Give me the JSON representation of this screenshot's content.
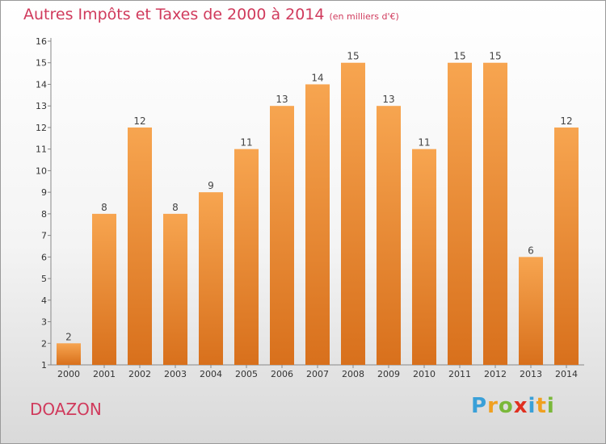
{
  "chart_data": {
    "type": "bar",
    "title": "Autres Impôts et Taxes de 2000 à 2014",
    "subtitle": "(en milliers d'€)",
    "xlabel": "",
    "ylabel": "",
    "categories": [
      "2000",
      "2001",
      "2002",
      "2003",
      "2004",
      "2005",
      "2006",
      "2007",
      "2008",
      "2009",
      "2010",
      "2011",
      "2012",
      "2013",
      "2014"
    ],
    "values": [
      2,
      8,
      12,
      8,
      9,
      11,
      13,
      14,
      15,
      13,
      11,
      15,
      15,
      6,
      12
    ],
    "ylim": [
      1,
      16
    ],
    "yticks": [
      1,
      2,
      3,
      4,
      5,
      6,
      7,
      8,
      9,
      10,
      11,
      12,
      13,
      14,
      15,
      16
    ],
    "grid": false,
    "bar_color": "#f0923a"
  },
  "commune": "DOAZON",
  "logo": {
    "letters": [
      "P",
      "r",
      "o",
      "x",
      "i",
      "t",
      "i"
    ],
    "colors": [
      "#3aa0d8",
      "#f0a020",
      "#7ab83a",
      "#e03020",
      "#3aa0d8",
      "#f0a020",
      "#7ab83a"
    ]
  }
}
